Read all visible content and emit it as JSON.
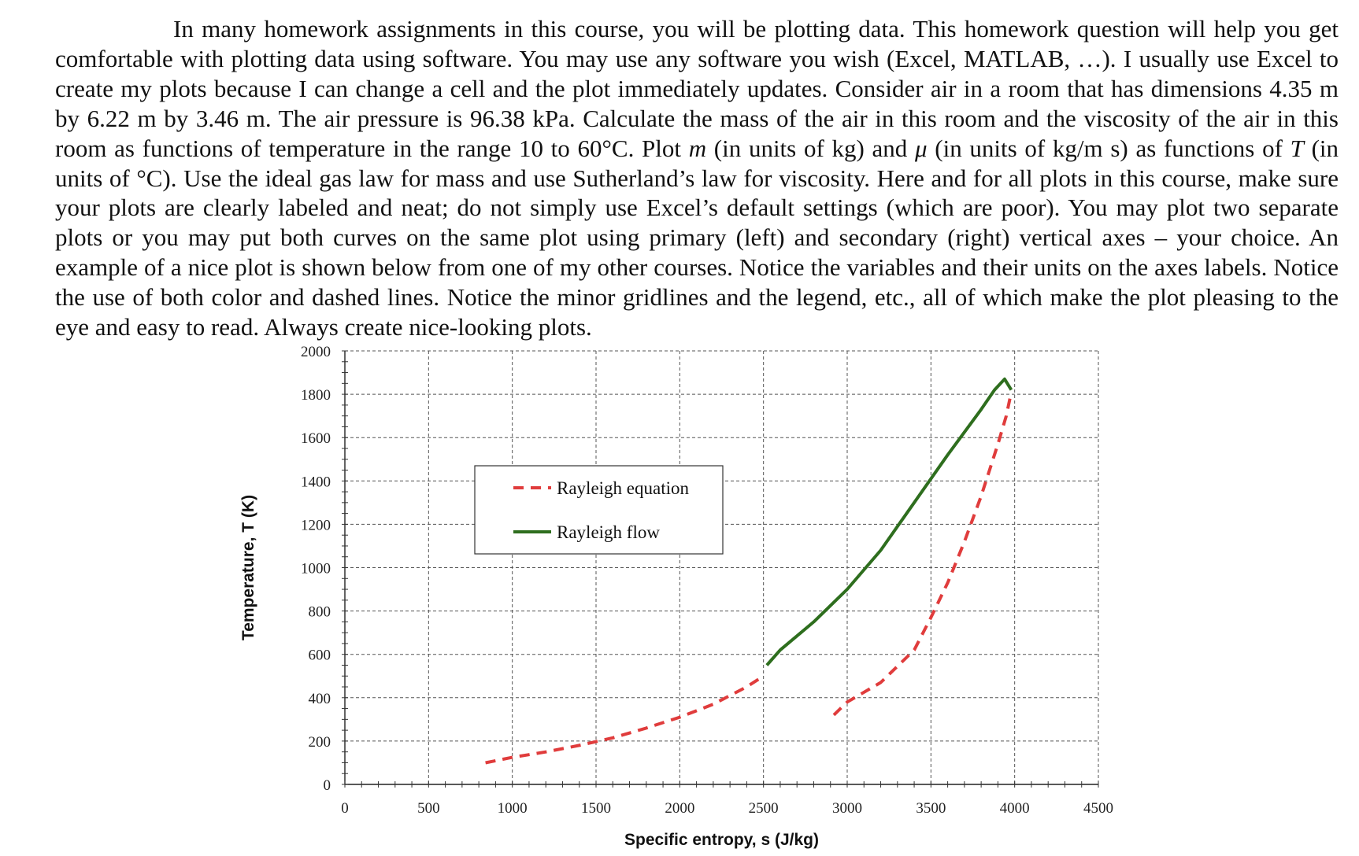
{
  "document": {
    "paragraph": [
      {
        "t": "In many homework assignments in this course, you will be plotting data. This homework question will help you get comfortable with plotting data using software. You may use any software you wish (Excel, MATLAB, …). I usually use Excel to create my plots because I can change a cell and the plot immediately updates. Consider air in a room that has dimensions 4.35 m by 6.22 m by 3.46 m. The air pressure is 96.38 kPa. Calculate the mass of the air in this room and the viscosity of the air in this room as functions of temperature in the range 10 to 60°C. Plot "
      },
      {
        "t": "m",
        "i": true
      },
      {
        "t": " (in units of kg) and "
      },
      {
        "t": "μ",
        "i": true
      },
      {
        "t": " (in units of kg/m s) as functions of "
      },
      {
        "t": "T",
        "i": true
      },
      {
        "t": " (in units of °C). Use the ideal gas law for mass and use Sutherland’s law for viscosity. Here and for all plots in this course, make sure your plots are clearly labeled and neat; do not simply use Excel’s default settings (which are poor). You may plot two separate plots or you may put both curves on the same plot using primary (left) and secondary (right) vertical axes – your choice. An example of a nice plot is shown below from one of my other courses. Notice the variables and their units on the axes labels. Notice the use of both color and dashed lines. Notice the minor gridlines and the legend, etc., all of which make the plot pleasing to the eye and easy to read. Always create nice-looking plots."
      }
    ]
  },
  "chart_data": {
    "type": "line",
    "xlabel": "Specific entropy, s (J/kg)",
    "ylabel": "Temperature, T (K)",
    "xlim": [
      0,
      4500
    ],
    "ylim": [
      0,
      2000
    ],
    "x_ticks": [
      0,
      500,
      1000,
      1500,
      2000,
      2500,
      3000,
      3500,
      4000,
      4500
    ],
    "y_ticks": [
      0,
      200,
      400,
      600,
      800,
      1000,
      1200,
      1400,
      1600,
      1800,
      2000
    ],
    "grid": true,
    "minor_gridlines": true,
    "legend_position": "upper-left-center",
    "series": [
      {
        "name": "Rayleigh equation",
        "color": "#e03c3c",
        "style": "dashed",
        "segments": [
          [
            [
              840,
              100
            ],
            [
              1000,
              125
            ],
            [
              1200,
              150
            ],
            [
              1400,
              180
            ],
            [
              1600,
              215
            ],
            [
              1800,
              260
            ],
            [
              2000,
              310
            ],
            [
              2200,
              370
            ],
            [
              2400,
              450
            ],
            [
              2500,
              500
            ]
          ],
          [
            [
              2920,
              320
            ],
            [
              3000,
              380
            ],
            [
              3200,
              470
            ],
            [
              3400,
              620
            ],
            [
              3500,
              770
            ],
            [
              3600,
              930
            ],
            [
              3700,
              1120
            ],
            [
              3800,
              1330
            ],
            [
              3900,
              1570
            ],
            [
              3950,
              1700
            ],
            [
              3980,
              1810
            ]
          ]
        ]
      },
      {
        "name": "Rayleigh flow",
        "color": "#2e6e1e",
        "style": "solid",
        "segments": [
          [
            [
              2520,
              550
            ],
            [
              2600,
              620
            ],
            [
              2800,
              750
            ],
            [
              3000,
              900
            ],
            [
              3200,
              1080
            ],
            [
              3400,
              1300
            ],
            [
              3600,
              1520
            ],
            [
              3800,
              1730
            ],
            [
              3880,
              1820
            ],
            [
              3940,
              1870
            ],
            [
              3980,
              1820
            ]
          ]
        ]
      }
    ]
  }
}
